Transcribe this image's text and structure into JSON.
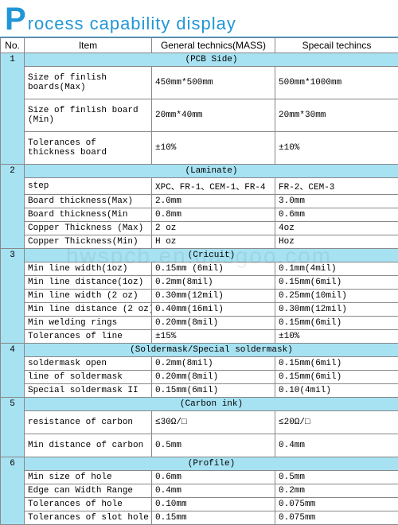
{
  "title": {
    "first": "P",
    "rest": "rocess capability display"
  },
  "columns": {
    "no": "No.",
    "item": "Item",
    "general": "General technics(MASS)",
    "special": "Specail techincs"
  },
  "watermark": "hwspcb.en.gasgoo.com",
  "sections": [
    {
      "no": "1",
      "head": "(PCB Side)",
      "rows": [
        {
          "item": "Size   of   finlish boards(Max)",
          "g": "450mm*500mm",
          "s": "500mm*1000mm",
          "tall": true
        },
        {
          "item": "Size of finlish board (Min)",
          "g": "20mm*40mm",
          "s": "20mm*30mm",
          "tall": true
        },
        {
          "item": "Tolerances of  thickness board",
          "g": "±10%",
          "s": "±10%",
          "tall": true
        }
      ]
    },
    {
      "no": "2",
      "head": "(Laminate)",
      "rows": [
        {
          "item": "step",
          "g": "XPC、FR-1、CEM-1、FR-4",
          "s": "FR-2、CEM-3"
        },
        {
          "item": "Board thickness(Max)",
          "g": "2.0mm",
          "s": "3.0mm"
        },
        {
          "item": "Board thickness(Min",
          "g": "0.8mm",
          "s": "0.6mm"
        },
        {
          "item": "Copper Thickness (Max)",
          "g": "2 oz",
          "s": "4oz"
        },
        {
          "item": "Copper Thickness(Min)",
          "g": "H oz",
          "s": "Hoz"
        }
      ]
    },
    {
      "no": "3",
      "head": "(Cricuit)",
      "rows": [
        {
          "item": "Min line width(1oz)",
          "g": "0.15mm  (6mil)",
          "s": "0.1mm(4mil)"
        },
        {
          "item": "Min line distance(1oz)",
          "g": "0.2mm(8mil)",
          "s": "0.15mm(6mil)"
        },
        {
          "item": "Min line width (2 oz)",
          "g": "0.30mm(12mil)",
          "s": "0.25mm(10mil)"
        },
        {
          "item": "Min line distance (2 oz)",
          "g": "0.40mm(16mil)",
          "s": "0.30mm(12mil)"
        },
        {
          "item": "Min welding rings",
          "g": "0.20mm(8mil)",
          "s": "0.15mm(6mil)"
        },
        {
          "item": "Tolerances of line",
          "g": "±15%",
          "s": "±10%"
        }
      ]
    },
    {
      "no": "4",
      "head": "(Soldermask/Special soldermask)",
      "rows": [
        {
          "item": "soldermask open",
          "g": "0.2mm(8mil)",
          "s": "0.15mm(6mil)"
        },
        {
          "item": "line of soldermask",
          "g": "0.20mm(8mil)",
          "s": "0.15mm(6mil)"
        },
        {
          "item": "Special soldermask II",
          "g": "0.15mm(6mil)",
          "s": "0.10(4mil)"
        }
      ]
    },
    {
      "no": "5",
      "head": "(Carbon ink)",
      "rows": [
        {
          "item": "resistance of carbon",
          "g": "≤30Ω/□",
          "s": "≤20Ω/□",
          "tall": true
        },
        {
          "item": "Min distance of carbon",
          "g": "0.5mm",
          "s": "0.4mm",
          "tall": true
        }
      ]
    },
    {
      "no": "6",
      "head": "(Profile)",
      "rows": [
        {
          "item": "Min size of hole",
          "g": "0.6mm",
          "s": "0.5mm"
        },
        {
          "item": "Edge can Width Range",
          "g": "0.4mm",
          "s": "0.2mm"
        },
        {
          "item": "Tolerances of hole",
          "g": "0.10mm",
          "s": "0.075mm"
        },
        {
          "item": "Tolerances of slot hole",
          "g": "0.15mm",
          "s": "0.075mm"
        }
      ]
    }
  ]
}
